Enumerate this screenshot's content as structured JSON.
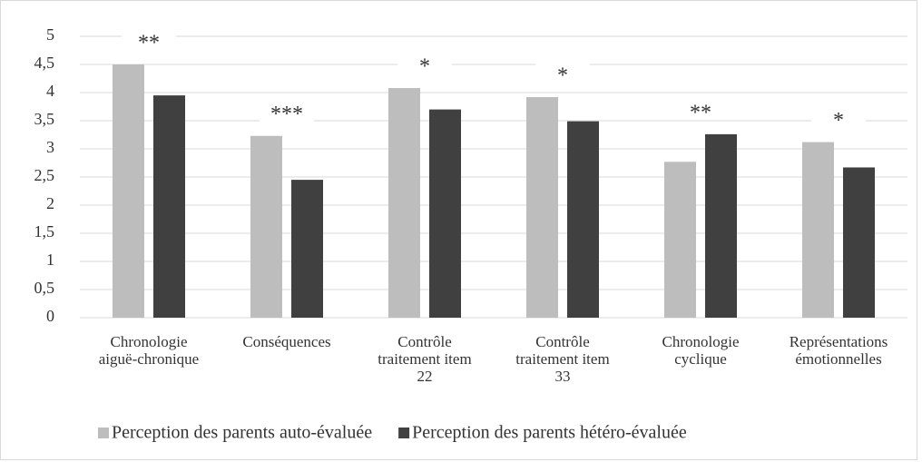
{
  "chart_data": {
    "type": "bar",
    "categories": [
      "Chronologie\naiguë-chronique",
      "Conséquences",
      "Contrôle\ntraitement item\n22",
      "Contrôle\ntraitement item\n33",
      "Chronologie\ncyclique",
      "Représentations\némotionnelles"
    ],
    "series": [
      {
        "name": "Perception des parents auto-évaluée",
        "color": "#bdbdbd",
        "values": [
          4.5,
          3.23,
          4.08,
          3.92,
          2.77,
          3.12
        ]
      },
      {
        "name": "Perception des parents hétéro-évaluée",
        "color": "#404040",
        "values": [
          3.95,
          2.45,
          3.7,
          3.49,
          3.26,
          2.67
        ]
      }
    ],
    "annotations": [
      "**",
      "***",
      "*",
      "*",
      "**",
      "*"
    ],
    "ylim": [
      0,
      5
    ],
    "yticks": [
      0,
      {
        "value": 0.5,
        "label": "0,5"
      },
      1,
      {
        "value": 1.5,
        "label": "1,5"
      },
      2,
      {
        "value": 2.5,
        "label": "2,5"
      },
      3,
      {
        "value": 3.5,
        "label": "3,5"
      },
      4,
      {
        "value": 4.5,
        "label": "4,5"
      },
      5
    ],
    "grid": true,
    "legend": "bottom"
  }
}
